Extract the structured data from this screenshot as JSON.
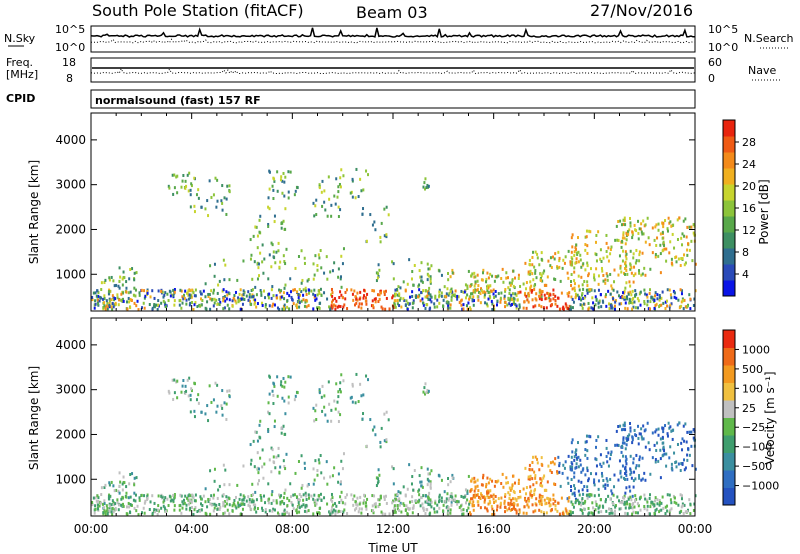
{
  "header": {
    "title": "South Pole Station (fitACF)",
    "beam": "Beam 03",
    "date": "27/Nov/2016"
  },
  "top_panels": {
    "nsky_label": "N.Sky",
    "nsky_ticks": [
      "10^5",
      "10^0"
    ],
    "nsearch_label": "N.Search",
    "nsearch_ticks": [
      "10^5",
      "10^0"
    ],
    "freq_label": "Freq.",
    "freq_unit": "[MHz]",
    "freq_ticks": [
      "18",
      "8"
    ],
    "nave_label": "Nave",
    "nave_ticks": [
      "60",
      "0"
    ],
    "cpid_label": "CPID",
    "cpid_text": "normalsound (fast) 157 RF"
  },
  "chart_data": [
    {
      "type": "heatmap",
      "name": "power",
      "ylabel": "Slant Range [km]",
      "xlabel": "",
      "yticks": [
        "1000",
        "2000",
        "3000",
        "4000"
      ],
      "ylim": [
        180,
        4600
      ],
      "xlim_hours": [
        0,
        24
      ],
      "colorbar": {
        "label": "Power [dB]",
        "ticks": [
          "4",
          "8",
          "12",
          "16",
          "20",
          "24",
          "28"
        ],
        "range": [
          0,
          32
        ],
        "colors": [
          "#0a14e6",
          "#2a4ab8",
          "#2f6e8f",
          "#3d8f62",
          "#58a84a",
          "#8cc43a",
          "#c7d42e",
          "#f0b020",
          "#f38a1a",
          "#ef5a14",
          "#e8240e"
        ]
      }
    },
    {
      "type": "heatmap",
      "name": "velocity",
      "ylabel": "Slant Range [km]",
      "xlabel": "Time UT",
      "yticks": [
        "1000",
        "2000",
        "3000",
        "4000"
      ],
      "xticks": [
        "00:00",
        "04:00",
        "08:00",
        "12:00",
        "16:00",
        "20:00",
        "00:00"
      ],
      "ylim": [
        180,
        4600
      ],
      "xlim_hours": [
        0,
        24
      ],
      "colorbar": {
        "label": "Velocity [m s⁻¹]",
        "ticks": [
          "1000",
          "500",
          "100",
          "25",
          "−25",
          "−100",
          "−500",
          "−1000"
        ],
        "colors": [
          "#2452c0",
          "#2f6ec2",
          "#3b8fa0",
          "#3f9e6e",
          "#5fb84a",
          "#c0c0c0",
          "#f0c040",
          "#f39a20",
          "#ef6a18",
          "#ea2a10"
        ]
      }
    }
  ]
}
